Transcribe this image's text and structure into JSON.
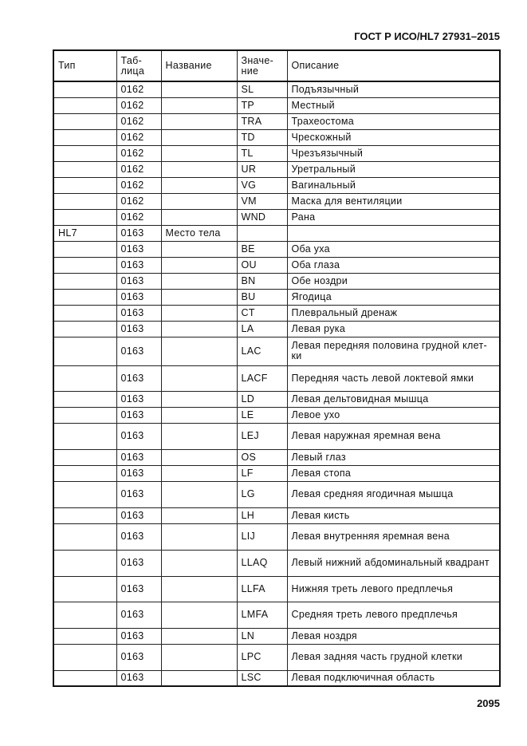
{
  "header": {
    "doc_id": "ГОСТ Р ИСО/HL7 27931–2015"
  },
  "table": {
    "columns": [
      "Тип",
      "Таб-\nлица",
      "Название",
      "Значе-\nние",
      "Описание"
    ],
    "rows": [
      [
        "",
        "0162",
        "",
        "SL",
        "Подъязычный"
      ],
      [
        "",
        "0162",
        "",
        "TP",
        "Местный"
      ],
      [
        "",
        "0162",
        "",
        "TRA",
        "Трахеостома"
      ],
      [
        "",
        "0162",
        "",
        "TD",
        "Чрескожный"
      ],
      [
        "",
        "0162",
        "",
        "TL",
        "Чрезъязычный"
      ],
      [
        "",
        "0162",
        "",
        "UR",
        "Уретральный"
      ],
      [
        "",
        "0162",
        "",
        "VG",
        "Вагинальный"
      ],
      [
        "",
        "0162",
        "",
        "VM",
        "Маска для вентиляции"
      ],
      [
        "",
        "0162",
        "",
        "WND",
        "Рана"
      ],
      [
        "HL7",
        "0163",
        "Место тела",
        "",
        ""
      ],
      [
        "",
        "0163",
        "",
        "BE",
        "Оба уха"
      ],
      [
        "",
        "0163",
        "",
        "OU",
        "Оба глаза"
      ],
      [
        "",
        "0163",
        "",
        "BN",
        "Обе ноздри"
      ],
      [
        "",
        "0163",
        "",
        "BU",
        "Ягодица"
      ],
      [
        "",
        "0163",
        "",
        "CT",
        "Плевральный дренаж"
      ],
      [
        "",
        "0163",
        "",
        "LA",
        "Левая рука"
      ],
      [
        "",
        "0163",
        "",
        "LAC",
        "Левая передняя половина грудной клет-\nки"
      ],
      [
        "",
        "0163",
        "",
        "LACF",
        "Передняя часть левой локтевой ямки"
      ],
      [
        "",
        "0163",
        "",
        "LD",
        "Левая дельтовидная мышца"
      ],
      [
        "",
        "0163",
        "",
        "LE",
        "Левое ухо"
      ],
      [
        "",
        "0163",
        "",
        "LEJ",
        "Левая наружная яремная вена"
      ],
      [
        "",
        "0163",
        "",
        "OS",
        "Левый глаз"
      ],
      [
        "",
        "0163",
        "",
        "LF",
        "Левая стопа"
      ],
      [
        "",
        "0163",
        "",
        "LG",
        "Левая средняя ягодичная мышца"
      ],
      [
        "",
        "0163",
        "",
        "LH",
        "Левая кисть"
      ],
      [
        "",
        "0163",
        "",
        "LIJ",
        "Левая внутренняя яремная вена"
      ],
      [
        "",
        "0163",
        "",
        "LLAQ",
        "Левый нижний абдоминальный квадрант"
      ],
      [
        "",
        "0163",
        "",
        "LLFA",
        "Нижняя треть левого предплечья"
      ],
      [
        "",
        "0163",
        "",
        "LMFA",
        "Средняя треть левого предплечья"
      ],
      [
        "",
        "0163",
        "",
        "LN",
        "Левая ноздря"
      ],
      [
        "",
        "0163",
        "",
        "LPC",
        "Левая задняя часть грудной клетки"
      ],
      [
        "",
        "0163",
        "",
        "LSC",
        "Левая подключичная область"
      ]
    ]
  },
  "footer": {
    "page_number": "2095"
  }
}
